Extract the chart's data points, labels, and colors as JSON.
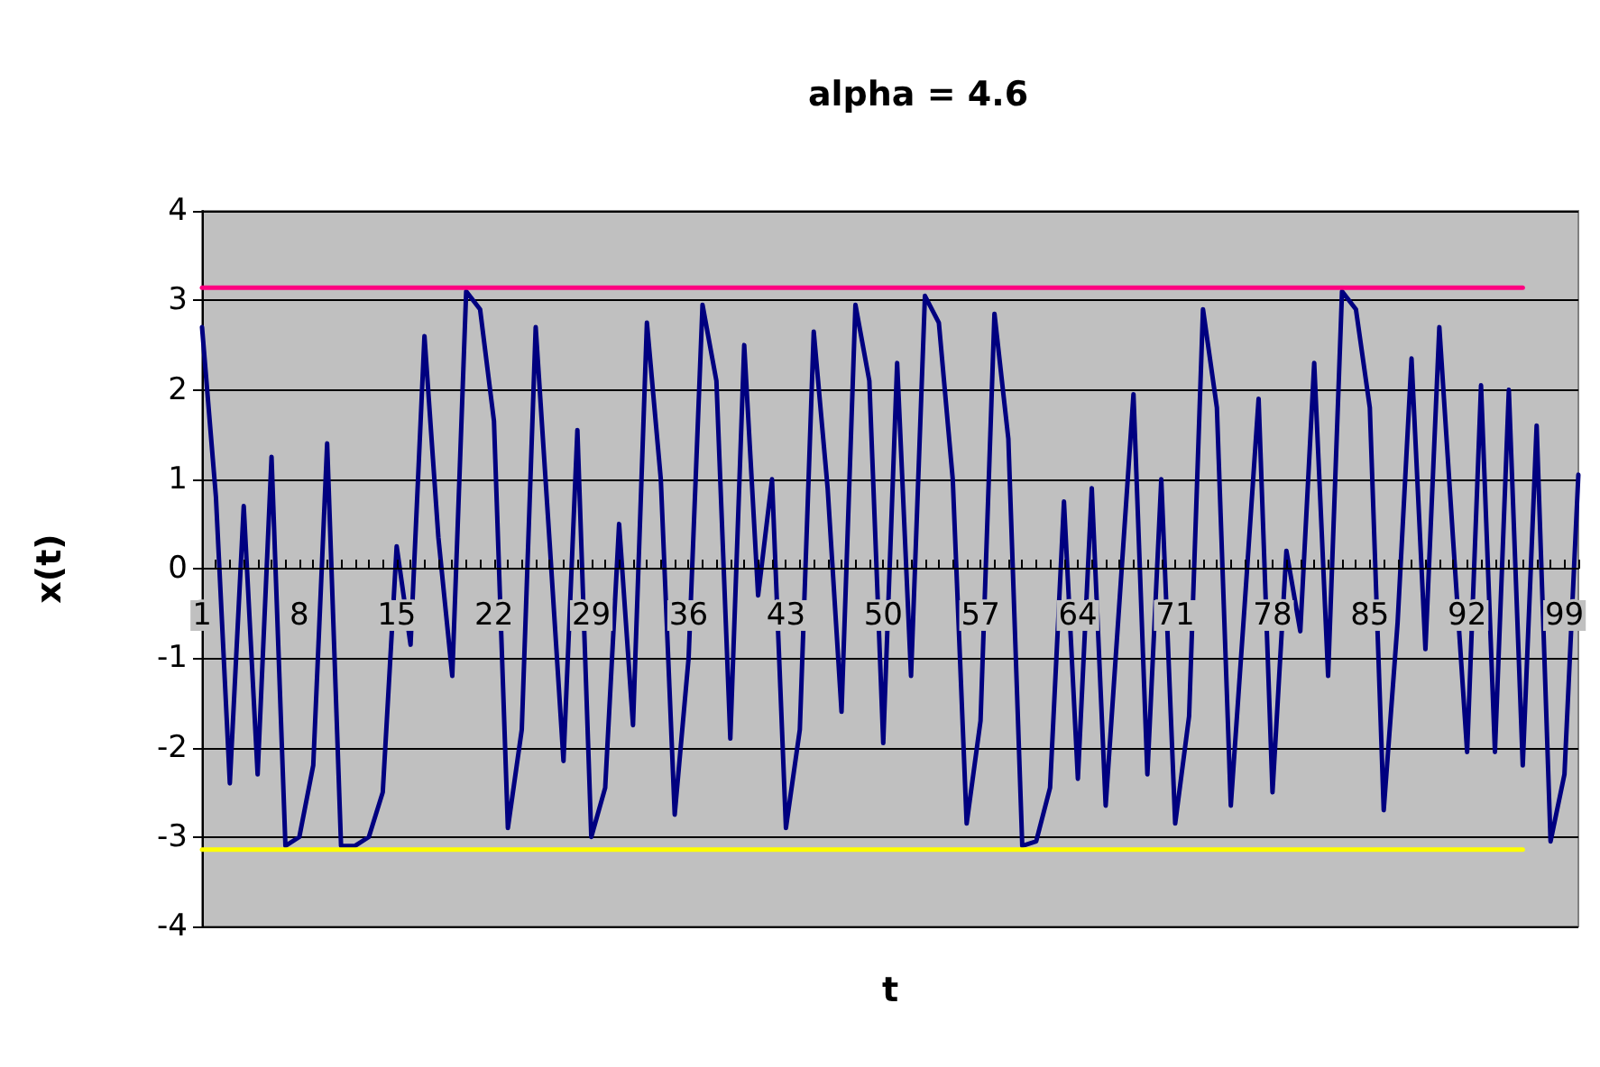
{
  "chart_data": {
    "type": "line",
    "title": "alpha = 4.6",
    "xlabel": "t",
    "ylabel": "x(t)",
    "categories": [
      "1",
      null,
      null,
      null,
      null,
      null,
      null,
      "8",
      null,
      null,
      null,
      null,
      null,
      null,
      "15",
      null,
      null,
      null,
      null,
      null,
      null,
      "22",
      null,
      null,
      null,
      null,
      null,
      null,
      "29",
      null,
      null,
      null,
      null,
      null,
      null,
      "36",
      null,
      null,
      null,
      null,
      null,
      null,
      "43",
      null,
      null,
      null,
      null,
      null,
      null,
      "50",
      null,
      null,
      null,
      null,
      null,
      null,
      "57",
      null,
      null,
      null,
      null,
      null,
      null,
      "64",
      null,
      null,
      null,
      null,
      null,
      null,
      "71",
      null,
      null,
      null,
      null,
      null,
      null,
      "78",
      null,
      null,
      null,
      null,
      null,
      null,
      "85",
      null,
      null,
      null,
      null,
      null,
      null,
      "92",
      null,
      null,
      null,
      null,
      null,
      null,
      "99",
      null
    ],
    "series": [
      {
        "color": "#000080",
        "values": [
          2.7,
          0.8,
          -2.4,
          0.7,
          -2.3,
          1.25,
          -3.1,
          -3.0,
          -2.2,
          1.4,
          -3.1,
          -3.1,
          -3.0,
          -2.5,
          0.25,
          -0.85,
          2.6,
          0.35,
          -1.2,
          3.1,
          2.9,
          1.65,
          -2.9,
          -1.8,
          2.7,
          0.3,
          -2.15,
          1.55,
          -3.0,
          -2.45,
          0.5,
          -1.75,
          2.75,
          1.0,
          -2.75,
          -1.0,
          2.95,
          2.1,
          -1.9,
          2.5,
          -0.3,
          1.0,
          -2.9,
          -1.8,
          2.65,
          0.9,
          -1.6,
          2.95,
          2.1,
          -1.95,
          2.3,
          -1.2,
          3.05,
          2.75,
          1.0,
          -2.85,
          -1.7,
          2.85,
          1.45,
          -3.1,
          -3.05,
          -2.45,
          0.75,
          -2.35,
          0.9,
          -2.65,
          -0.35,
          1.95,
          -2.3,
          1.0,
          -2.85,
          -1.65,
          2.9,
          1.8,
          -2.65,
          -0.4,
          1.9,
          -2.5,
          0.2,
          -0.7,
          2.3,
          -1.2,
          3.1,
          2.9,
          1.8,
          -2.7,
          -0.6,
          2.35,
          -0.9,
          2.7,
          0.3,
          -2.05,
          2.05,
          -2.05,
          2.0,
          -2.2,
          1.6,
          -3.05,
          -2.3,
          1.05
        ]
      },
      {
        "color": "#ff0080",
        "values": [
          3.14,
          3.14,
          3.14,
          3.14,
          3.14,
          3.14,
          3.14,
          3.14,
          3.14,
          3.14,
          3.14,
          3.14,
          3.14,
          3.14,
          3.14,
          3.14,
          3.14,
          3.14,
          3.14,
          3.14,
          3.14,
          3.14,
          3.14,
          3.14,
          3.14,
          3.14,
          3.14,
          3.14,
          3.14,
          3.14,
          3.14,
          3.14,
          3.14,
          3.14,
          3.14,
          3.14,
          3.14,
          3.14,
          3.14,
          3.14,
          3.14,
          3.14,
          3.14,
          3.14,
          3.14,
          3.14,
          3.14,
          3.14,
          3.14,
          3.14,
          3.14,
          3.14,
          3.14,
          3.14,
          3.14,
          3.14,
          3.14,
          3.14,
          3.14,
          3.14,
          3.14,
          3.14,
          3.14,
          3.14,
          3.14,
          3.14,
          3.14,
          3.14,
          3.14,
          3.14,
          3.14,
          3.14,
          3.14,
          3.14,
          3.14,
          3.14,
          3.14,
          3.14,
          3.14,
          3.14,
          3.14,
          3.14,
          3.14,
          3.14,
          3.14,
          3.14,
          3.14,
          3.14,
          3.14,
          3.14,
          3.14,
          3.14,
          3.14,
          3.14,
          3.14,
          3.14,
          null,
          null,
          null,
          null
        ]
      },
      {
        "color": "#ffff00",
        "values": [
          -3.14,
          -3.14,
          -3.14,
          -3.14,
          -3.14,
          -3.14,
          -3.14,
          -3.14,
          -3.14,
          -3.14,
          -3.14,
          -3.14,
          -3.14,
          -3.14,
          -3.14,
          -3.14,
          -3.14,
          -3.14,
          -3.14,
          -3.14,
          -3.14,
          -3.14,
          -3.14,
          -3.14,
          -3.14,
          -3.14,
          -3.14,
          -3.14,
          -3.14,
          -3.14,
          -3.14,
          -3.14,
          -3.14,
          -3.14,
          -3.14,
          -3.14,
          -3.14,
          -3.14,
          -3.14,
          -3.14,
          -3.14,
          -3.14,
          -3.14,
          -3.14,
          -3.14,
          -3.14,
          -3.14,
          -3.14,
          -3.14,
          -3.14,
          -3.14,
          -3.14,
          -3.14,
          -3.14,
          -3.14,
          -3.14,
          -3.14,
          -3.14,
          -3.14,
          -3.14,
          -3.14,
          -3.14,
          -3.14,
          -3.14,
          -3.14,
          -3.14,
          -3.14,
          -3.14,
          -3.14,
          -3.14,
          -3.14,
          -3.14,
          -3.14,
          -3.14,
          -3.14,
          -3.14,
          -3.14,
          -3.14,
          -3.14,
          -3.14,
          -3.14,
          -3.14,
          -3.14,
          -3.14,
          -3.14,
          -3.14,
          -3.14,
          -3.14,
          -3.14,
          -3.14,
          -3.14,
          -3.14,
          -3.14,
          -3.14,
          -3.14,
          -3.14,
          null,
          null,
          null,
          null
        ]
      }
    ],
    "ylim": [
      -4,
      4
    ],
    "yticks": [
      -4,
      -3,
      -2,
      -1,
      0,
      1,
      2,
      3,
      4
    ],
    "grid": "y",
    "marker": "none",
    "line_style": "solid"
  }
}
